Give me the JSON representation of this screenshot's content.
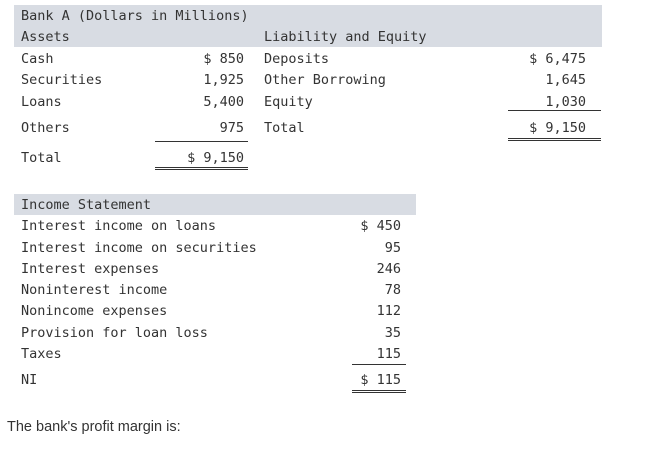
{
  "balance_sheet": {
    "title": "Bank A (Dollars in Millions)",
    "assets_header": "Assets",
    "liab_header": "Liability and Equity",
    "assets": [
      {
        "label": "Cash",
        "value": "$ 850"
      },
      {
        "label": "Securities",
        "value": "1,925"
      },
      {
        "label": "Loans",
        "value": "5,400"
      },
      {
        "label": "Others",
        "value": "975"
      }
    ],
    "assets_total": {
      "label": "Total",
      "value": "$ 9,150"
    },
    "liabilities": [
      {
        "label": "Deposits",
        "value": "$ 6,475"
      },
      {
        "label": "Other Borrowing",
        "value": "1,645"
      },
      {
        "label": "Equity",
        "value": "1,030"
      },
      {
        "label": "Total",
        "value": "$ 9,150"
      }
    ]
  },
  "income_statement": {
    "title": "Income Statement",
    "rows": [
      {
        "label": "Interest income on loans",
        "value": "$ 450"
      },
      {
        "label": "Interest income on securities",
        "value": "95"
      },
      {
        "label": "Interest expenses",
        "value": "246"
      },
      {
        "label": "Noninterest income",
        "value": "78"
      },
      {
        "label": "Nonincome expenses",
        "value": "112"
      },
      {
        "label": "Provision for loan loss",
        "value": "35"
      },
      {
        "label": "Taxes",
        "value": "115"
      },
      {
        "label": "NI",
        "value": "$ 115"
      }
    ]
  },
  "question": "The bank's profit margin is:"
}
